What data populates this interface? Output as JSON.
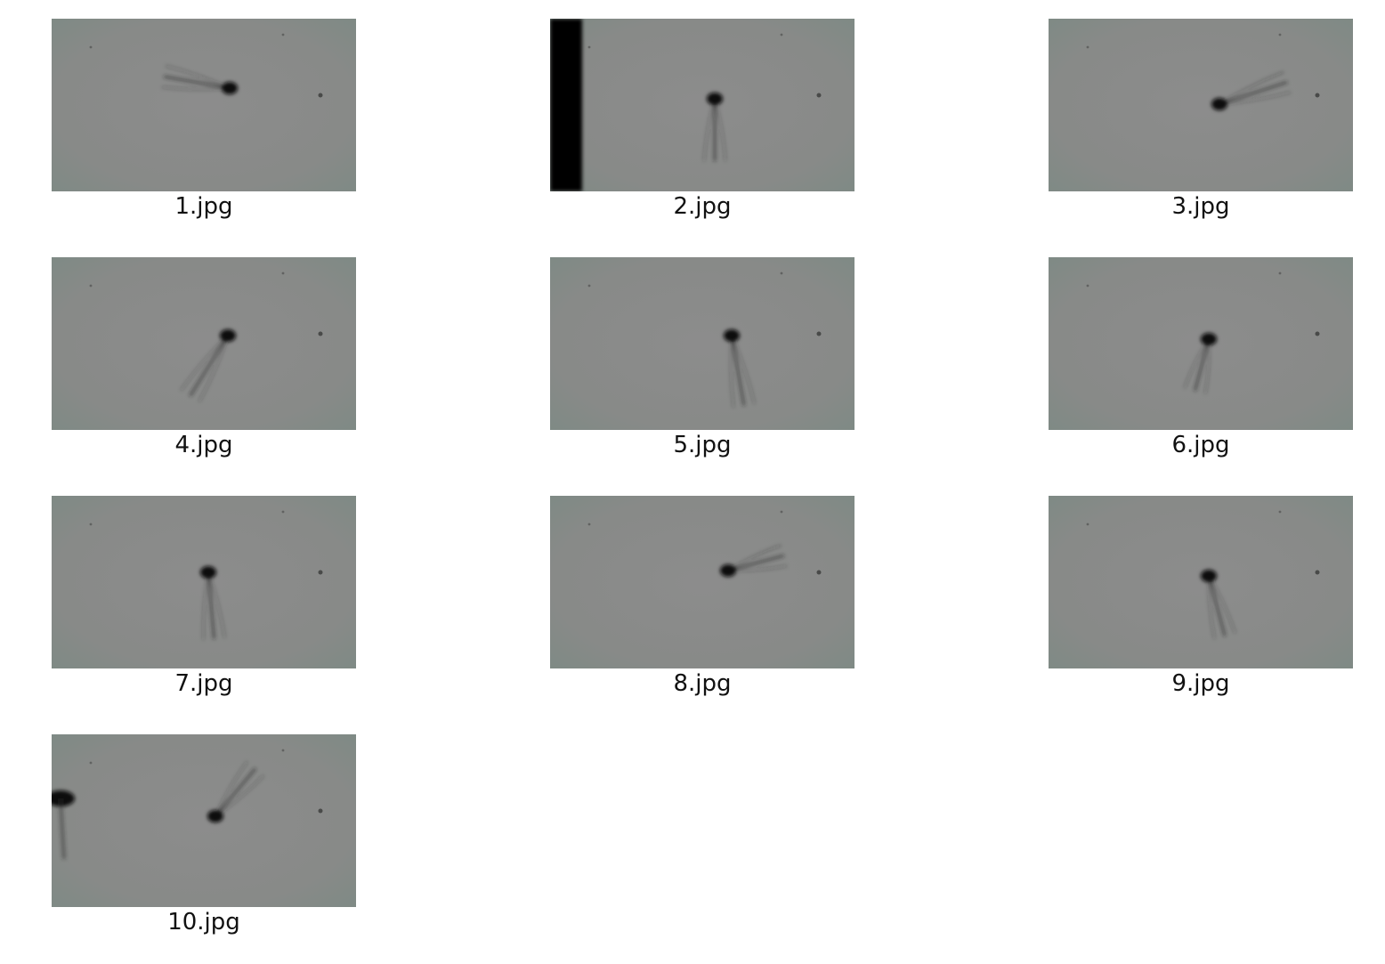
{
  "thumbnails": [
    {
      "label": "1.jpg",
      "head": [
        200,
        78
      ],
      "tail_angle": 190,
      "tail_len": 75,
      "left_bar": 0
    },
    {
      "label": "2.jpg",
      "head": [
        185,
        90
      ],
      "tail_angle": 90,
      "tail_len": 70,
      "left_bar": 1
    },
    {
      "label": "3.jpg",
      "head": [
        192,
        96
      ],
      "tail_angle": -18,
      "tail_len": 80,
      "left_bar": 0
    },
    {
      "label": "4.jpg",
      "head": [
        198,
        88
      ],
      "tail_angle": 122,
      "tail_len": 80,
      "left_bar": 0
    },
    {
      "label": "5.jpg",
      "head": [
        204,
        88
      ],
      "tail_angle": 80,
      "tail_len": 80,
      "left_bar": 0
    },
    {
      "label": "6.jpg",
      "head": [
        180,
        92
      ],
      "tail_angle": 105,
      "tail_len": 60,
      "left_bar": 0
    },
    {
      "label": "7.jpg",
      "head": [
        176,
        86
      ],
      "tail_angle": 85,
      "tail_len": 75,
      "left_bar": 0
    },
    {
      "label": "8.jpg",
      "head": [
        200,
        84
      ],
      "tail_angle": -15,
      "tail_len": 65,
      "left_bar": 0
    },
    {
      "label": "9.jpg",
      "head": [
        180,
        90
      ],
      "tail_angle": 75,
      "tail_len": 70,
      "left_bar": 0
    },
    {
      "label": "10.jpg",
      "head": [
        184,
        92
      ],
      "tail_angle": -50,
      "tail_len": 70,
      "left_bar": 0
    }
  ]
}
